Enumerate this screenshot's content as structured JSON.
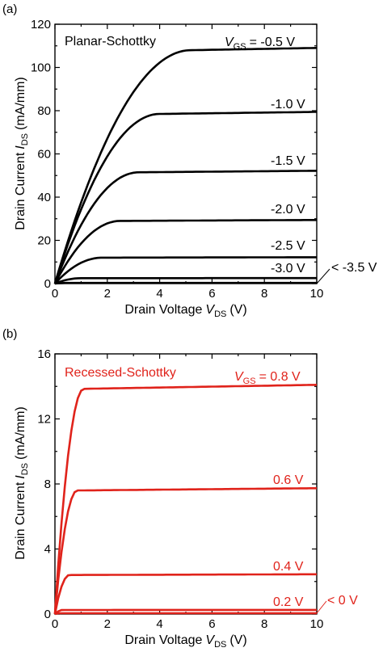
{
  "chart_data": [
    {
      "type": "line",
      "panel_label": "(a)",
      "title": "Planar-Schottky",
      "xlabel": "Drain Voltage",
      "xlabel_sym": "V",
      "xlabel_sub": "DS",
      "xlabel_unit": "(V)",
      "ylabel": "Drain Current",
      "ylabel_sym": "I",
      "ylabel_sub": "DS",
      "ylabel_unit": "(mA/mm)",
      "xlim": [
        0,
        10
      ],
      "ylim": [
        0,
        120
      ],
      "xticks": [
        "0",
        "2",
        "4",
        "6",
        "8",
        "10"
      ],
      "yticks": [
        "0",
        "20",
        "40",
        "60",
        "80",
        "100",
        "120"
      ],
      "color": "#000000",
      "legend_sym": "V",
      "legend_sub": "GS",
      "series": [
        {
          "name": "= -0.5 V",
          "sat": 108,
          "knee": 5.2
        },
        {
          "name": "-1.0 V",
          "sat": 78.5,
          "knee": 4.0
        },
        {
          "name": "-1.5 V",
          "sat": 51.5,
          "knee": 3.2
        },
        {
          "name": "-2.0 V",
          "sat": 29,
          "knee": 2.5
        },
        {
          "name": "-2.5 V",
          "sat": 12,
          "knee": 1.8
        },
        {
          "name": "-3.0 V",
          "sat": 2.5,
          "knee": 1.0
        },
        {
          "name": "< -3.5 V",
          "sat": 0.3,
          "knee": 0.5
        }
      ]
    },
    {
      "type": "line",
      "panel_label": "(b)",
      "title": "Recessed-Schottky",
      "xlabel": "Drain Voltage",
      "xlabel_sym": "V",
      "xlabel_sub": "DS",
      "xlabel_unit": "(V)",
      "ylabel": "Drain Current",
      "ylabel_sym": "I",
      "ylabel_sub": "DS",
      "ylabel_unit": "(mA/mm)",
      "xlim": [
        0,
        10
      ],
      "ylim": [
        0,
        16
      ],
      "xticks": [
        "0",
        "2",
        "4",
        "6",
        "8",
        "10"
      ],
      "yticks": [
        "0",
        "4",
        "8",
        "12",
        "16"
      ],
      "color": "#e0231b",
      "legend_sym": "V",
      "legend_sub": "GS",
      "series": [
        {
          "name": "= 0.8 V",
          "sat": 13.85,
          "knee": 1.1
        },
        {
          "name": "0.6 V",
          "sat": 7.6,
          "knee": 0.85
        },
        {
          "name": "0.4 V",
          "sat": 2.4,
          "knee": 0.55
        },
        {
          "name": "0.2 V",
          "sat": 0.25,
          "knee": 0.3
        },
        {
          "name": "< 0 V",
          "sat": 0.05,
          "knee": 0.2
        }
      ]
    }
  ]
}
